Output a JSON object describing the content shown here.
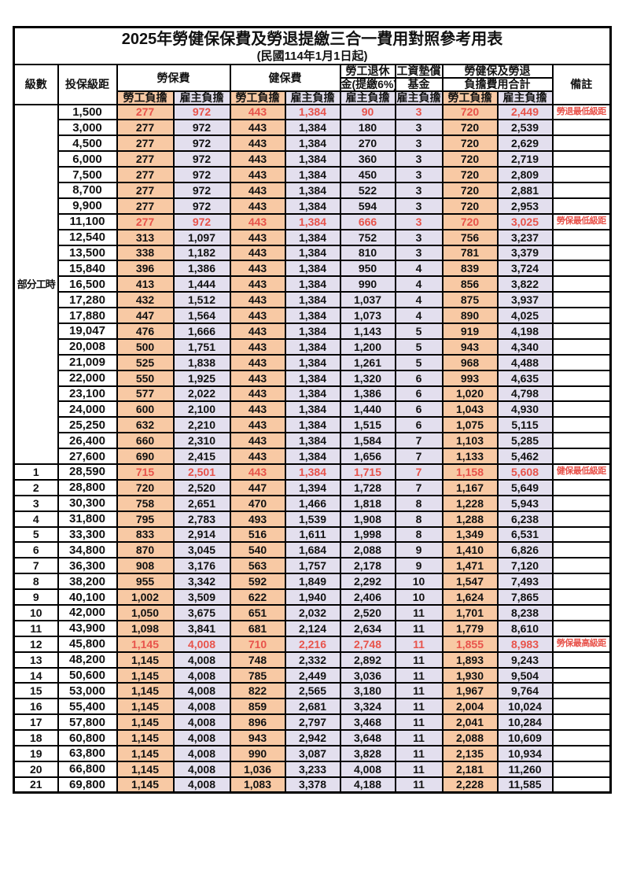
{
  "title": "2025年勞健保保費及勞退提繳三合一費用對照參考用表",
  "subtitle": "(民國114年1月1日起)",
  "header": {
    "level": "級數",
    "bracket": "投保級距",
    "labor_insurance": "勞保費",
    "health_insurance": "健保費",
    "pension_line1": "勞工退休",
    "pension_line2": "金(提繳6%)",
    "wage_fund_line1": "工資墊償",
    "wage_fund_line2": "基金",
    "total_line1": "勞健保及勞退",
    "total_line2": "負擔費用合計",
    "remark": "備註",
    "employee": "勞工負擔",
    "employer": "雇主負擔"
  },
  "part_time_label": "部分工時",
  "part_time_rowspan": 23,
  "colors": {
    "employee_burden_bg": "#F8C9A4",
    "employer_burden_bg": "#E3DFEE",
    "highlight_red": "#E8534B",
    "border": "#000000"
  },
  "rows": [
    {
      "level": "",
      "bracket": "1,500",
      "labor_emp": "277",
      "labor_er": "972",
      "health_emp": "443",
      "health_er": "1,384",
      "pension_er": "90",
      "fund_er": "3",
      "total_emp": "720",
      "total_er": "2,449",
      "remark": "勞退最低級距",
      "red": true
    },
    {
      "level": "",
      "bracket": "3,000",
      "labor_emp": "277",
      "labor_er": "972",
      "health_emp": "443",
      "health_er": "1,384",
      "pension_er": "180",
      "fund_er": "3",
      "total_emp": "720",
      "total_er": "2,539",
      "remark": "",
      "red": false
    },
    {
      "level": "",
      "bracket": "4,500",
      "labor_emp": "277",
      "labor_er": "972",
      "health_emp": "443",
      "health_er": "1,384",
      "pension_er": "270",
      "fund_er": "3",
      "total_emp": "720",
      "total_er": "2,629",
      "remark": "",
      "red": false
    },
    {
      "level": "",
      "bracket": "6,000",
      "labor_emp": "277",
      "labor_er": "972",
      "health_emp": "443",
      "health_er": "1,384",
      "pension_er": "360",
      "fund_er": "3",
      "total_emp": "720",
      "total_er": "2,719",
      "remark": "",
      "red": false
    },
    {
      "level": "",
      "bracket": "7,500",
      "labor_emp": "277",
      "labor_er": "972",
      "health_emp": "443",
      "health_er": "1,384",
      "pension_er": "450",
      "fund_er": "3",
      "total_emp": "720",
      "total_er": "2,809",
      "remark": "",
      "red": false
    },
    {
      "level": "",
      "bracket": "8,700",
      "labor_emp": "277",
      "labor_er": "972",
      "health_emp": "443",
      "health_er": "1,384",
      "pension_er": "522",
      "fund_er": "3",
      "total_emp": "720",
      "total_er": "2,881",
      "remark": "",
      "red": false
    },
    {
      "level": "",
      "bracket": "9,900",
      "labor_emp": "277",
      "labor_er": "972",
      "health_emp": "443",
      "health_er": "1,384",
      "pension_er": "594",
      "fund_er": "3",
      "total_emp": "720",
      "total_er": "2,953",
      "remark": "",
      "red": false
    },
    {
      "level": "",
      "bracket": "11,100",
      "labor_emp": "277",
      "labor_er": "972",
      "health_emp": "443",
      "health_er": "1,384",
      "pension_er": "666",
      "fund_er": "3",
      "total_emp": "720",
      "total_er": "3,025",
      "remark": "勞保最低級距",
      "red": true
    },
    {
      "level": "",
      "bracket": "12,540",
      "labor_emp": "313",
      "labor_er": "1,097",
      "health_emp": "443",
      "health_er": "1,384",
      "pension_er": "752",
      "fund_er": "3",
      "total_emp": "756",
      "total_er": "3,237",
      "remark": "",
      "red": false
    },
    {
      "level": "",
      "bracket": "13,500",
      "labor_emp": "338",
      "labor_er": "1,182",
      "health_emp": "443",
      "health_er": "1,384",
      "pension_er": "810",
      "fund_er": "3",
      "total_emp": "781",
      "total_er": "3,379",
      "remark": "",
      "red": false
    },
    {
      "level": "",
      "bracket": "15,840",
      "labor_emp": "396",
      "labor_er": "1,386",
      "health_emp": "443",
      "health_er": "1,384",
      "pension_er": "950",
      "fund_er": "4",
      "total_emp": "839",
      "total_er": "3,724",
      "remark": "",
      "red": false
    },
    {
      "level": "",
      "bracket": "16,500",
      "labor_emp": "413",
      "labor_er": "1,444",
      "health_emp": "443",
      "health_er": "1,384",
      "pension_er": "990",
      "fund_er": "4",
      "total_emp": "856",
      "total_er": "3,822",
      "remark": "",
      "red": false
    },
    {
      "level": "",
      "bracket": "17,280",
      "labor_emp": "432",
      "labor_er": "1,512",
      "health_emp": "443",
      "health_er": "1,384",
      "pension_er": "1,037",
      "fund_er": "4",
      "total_emp": "875",
      "total_er": "3,937",
      "remark": "",
      "red": false
    },
    {
      "level": "",
      "bracket": "17,880",
      "labor_emp": "447",
      "labor_er": "1,564",
      "health_emp": "443",
      "health_er": "1,384",
      "pension_er": "1,073",
      "fund_er": "4",
      "total_emp": "890",
      "total_er": "4,025",
      "remark": "",
      "red": false
    },
    {
      "level": "",
      "bracket": "19,047",
      "labor_emp": "476",
      "labor_er": "1,666",
      "health_emp": "443",
      "health_er": "1,384",
      "pension_er": "1,143",
      "fund_er": "5",
      "total_emp": "919",
      "total_er": "4,198",
      "remark": "",
      "red": false
    },
    {
      "level": "",
      "bracket": "20,008",
      "labor_emp": "500",
      "labor_er": "1,751",
      "health_emp": "443",
      "health_er": "1,384",
      "pension_er": "1,200",
      "fund_er": "5",
      "total_emp": "943",
      "total_er": "4,340",
      "remark": "",
      "red": false
    },
    {
      "level": "",
      "bracket": "21,009",
      "labor_emp": "525",
      "labor_er": "1,838",
      "health_emp": "443",
      "health_er": "1,384",
      "pension_er": "1,261",
      "fund_er": "5",
      "total_emp": "968",
      "total_er": "4,488",
      "remark": "",
      "red": false
    },
    {
      "level": "",
      "bracket": "22,000",
      "labor_emp": "550",
      "labor_er": "1,925",
      "health_emp": "443",
      "health_er": "1,384",
      "pension_er": "1,320",
      "fund_er": "6",
      "total_emp": "993",
      "total_er": "4,635",
      "remark": "",
      "red": false
    },
    {
      "level": "",
      "bracket": "23,100",
      "labor_emp": "577",
      "labor_er": "2,022",
      "health_emp": "443",
      "health_er": "1,384",
      "pension_er": "1,386",
      "fund_er": "6",
      "total_emp": "1,020",
      "total_er": "4,798",
      "remark": "",
      "red": false
    },
    {
      "level": "",
      "bracket": "24,000",
      "labor_emp": "600",
      "labor_er": "2,100",
      "health_emp": "443",
      "health_er": "1,384",
      "pension_er": "1,440",
      "fund_er": "6",
      "total_emp": "1,043",
      "total_er": "4,930",
      "remark": "",
      "red": false
    },
    {
      "level": "",
      "bracket": "25,250",
      "labor_emp": "632",
      "labor_er": "2,210",
      "health_emp": "443",
      "health_er": "1,384",
      "pension_er": "1,515",
      "fund_er": "6",
      "total_emp": "1,075",
      "total_er": "5,115",
      "remark": "",
      "red": false
    },
    {
      "level": "",
      "bracket": "26,400",
      "labor_emp": "660",
      "labor_er": "2,310",
      "health_emp": "443",
      "health_er": "1,384",
      "pension_er": "1,584",
      "fund_er": "7",
      "total_emp": "1,103",
      "total_er": "5,285",
      "remark": "",
      "red": false
    },
    {
      "level": "",
      "bracket": "27,600",
      "labor_emp": "690",
      "labor_er": "2,415",
      "health_emp": "443",
      "health_er": "1,384",
      "pension_er": "1,656",
      "fund_er": "7",
      "total_emp": "1,133",
      "total_er": "5,462",
      "remark": "",
      "red": false
    },
    {
      "level": "1",
      "bracket": "28,590",
      "labor_emp": "715",
      "labor_er": "2,501",
      "health_emp": "443",
      "health_er": "1,384",
      "pension_er": "1,715",
      "fund_er": "7",
      "total_emp": "1,158",
      "total_er": "5,608",
      "remark": "健保最低級距",
      "red": true
    },
    {
      "level": "2",
      "bracket": "28,800",
      "labor_emp": "720",
      "labor_er": "2,520",
      "health_emp": "447",
      "health_er": "1,394",
      "pension_er": "1,728",
      "fund_er": "7",
      "total_emp": "1,167",
      "total_er": "5,649",
      "remark": "",
      "red": false
    },
    {
      "level": "3",
      "bracket": "30,300",
      "labor_emp": "758",
      "labor_er": "2,651",
      "health_emp": "470",
      "health_er": "1,466",
      "pension_er": "1,818",
      "fund_er": "8",
      "total_emp": "1,228",
      "total_er": "5,943",
      "remark": "",
      "red": false
    },
    {
      "level": "4",
      "bracket": "31,800",
      "labor_emp": "795",
      "labor_er": "2,783",
      "health_emp": "493",
      "health_er": "1,539",
      "pension_er": "1,908",
      "fund_er": "8",
      "total_emp": "1,288",
      "total_er": "6,238",
      "remark": "",
      "red": false
    },
    {
      "level": "5",
      "bracket": "33,300",
      "labor_emp": "833",
      "labor_er": "2,914",
      "health_emp": "516",
      "health_er": "1,611",
      "pension_er": "1,998",
      "fund_er": "8",
      "total_emp": "1,349",
      "total_er": "6,531",
      "remark": "",
      "red": false
    },
    {
      "level": "6",
      "bracket": "34,800",
      "labor_emp": "870",
      "labor_er": "3,045",
      "health_emp": "540",
      "health_er": "1,684",
      "pension_er": "2,088",
      "fund_er": "9",
      "total_emp": "1,410",
      "total_er": "6,826",
      "remark": "",
      "red": false
    },
    {
      "level": "7",
      "bracket": "36,300",
      "labor_emp": "908",
      "labor_er": "3,176",
      "health_emp": "563",
      "health_er": "1,757",
      "pension_er": "2,178",
      "fund_er": "9",
      "total_emp": "1,471",
      "total_er": "7,120",
      "remark": "",
      "red": false
    },
    {
      "level": "8",
      "bracket": "38,200",
      "labor_emp": "955",
      "labor_er": "3,342",
      "health_emp": "592",
      "health_er": "1,849",
      "pension_er": "2,292",
      "fund_er": "10",
      "total_emp": "1,547",
      "total_er": "7,493",
      "remark": "",
      "red": false
    },
    {
      "level": "9",
      "bracket": "40,100",
      "labor_emp": "1,002",
      "labor_er": "3,509",
      "health_emp": "622",
      "health_er": "1,940",
      "pension_er": "2,406",
      "fund_er": "10",
      "total_emp": "1,624",
      "total_er": "7,865",
      "remark": "",
      "red": false
    },
    {
      "level": "10",
      "bracket": "42,000",
      "labor_emp": "1,050",
      "labor_er": "3,675",
      "health_emp": "651",
      "health_er": "2,032",
      "pension_er": "2,520",
      "fund_er": "11",
      "total_emp": "1,701",
      "total_er": "8,238",
      "remark": "",
      "red": false
    },
    {
      "level": "11",
      "bracket": "43,900",
      "labor_emp": "1,098",
      "labor_er": "3,841",
      "health_emp": "681",
      "health_er": "2,124",
      "pension_er": "2,634",
      "fund_er": "11",
      "total_emp": "1,779",
      "total_er": "8,610",
      "remark": "",
      "red": false
    },
    {
      "level": "12",
      "bracket": "45,800",
      "labor_emp": "1,145",
      "labor_er": "4,008",
      "health_emp": "710",
      "health_er": "2,216",
      "pension_er": "2,748",
      "fund_er": "11",
      "total_emp": "1,855",
      "total_er": "8,983",
      "remark": "勞保最高級距",
      "red": true
    },
    {
      "level": "13",
      "bracket": "48,200",
      "labor_emp": "1,145",
      "labor_er": "4,008",
      "health_emp": "748",
      "health_er": "2,332",
      "pension_er": "2,892",
      "fund_er": "11",
      "total_emp": "1,893",
      "total_er": "9,243",
      "remark": "",
      "red": false
    },
    {
      "level": "14",
      "bracket": "50,600",
      "labor_emp": "1,145",
      "labor_er": "4,008",
      "health_emp": "785",
      "health_er": "2,449",
      "pension_er": "3,036",
      "fund_er": "11",
      "total_emp": "1,930",
      "total_er": "9,504",
      "remark": "",
      "red": false
    },
    {
      "level": "15",
      "bracket": "53,000",
      "labor_emp": "1,145",
      "labor_er": "4,008",
      "health_emp": "822",
      "health_er": "2,565",
      "pension_er": "3,180",
      "fund_er": "11",
      "total_emp": "1,967",
      "total_er": "9,764",
      "remark": "",
      "red": false
    },
    {
      "level": "16",
      "bracket": "55,400",
      "labor_emp": "1,145",
      "labor_er": "4,008",
      "health_emp": "859",
      "health_er": "2,681",
      "pension_er": "3,324",
      "fund_er": "11",
      "total_emp": "2,004",
      "total_er": "10,024",
      "remark": "",
      "red": false
    },
    {
      "level": "17",
      "bracket": "57,800",
      "labor_emp": "1,145",
      "labor_er": "4,008",
      "health_emp": "896",
      "health_er": "2,797",
      "pension_er": "3,468",
      "fund_er": "11",
      "total_emp": "2,041",
      "total_er": "10,284",
      "remark": "",
      "red": false
    },
    {
      "level": "18",
      "bracket": "60,800",
      "labor_emp": "1,145",
      "labor_er": "4,008",
      "health_emp": "943",
      "health_er": "2,942",
      "pension_er": "3,648",
      "fund_er": "11",
      "total_emp": "2,088",
      "total_er": "10,609",
      "remark": "",
      "red": false
    },
    {
      "level": "19",
      "bracket": "63,800",
      "labor_emp": "1,145",
      "labor_er": "4,008",
      "health_emp": "990",
      "health_er": "3,087",
      "pension_er": "3,828",
      "fund_er": "11",
      "total_emp": "2,135",
      "total_er": "10,934",
      "remark": "",
      "red": false
    },
    {
      "level": "20",
      "bracket": "66,800",
      "labor_emp": "1,145",
      "labor_er": "4,008",
      "health_emp": "1,036",
      "health_er": "3,233",
      "pension_er": "4,008",
      "fund_er": "11",
      "total_emp": "2,181",
      "total_er": "11,260",
      "remark": "",
      "red": false
    },
    {
      "level": "21",
      "bracket": "69,800",
      "labor_emp": "1,145",
      "labor_er": "4,008",
      "health_emp": "1,083",
      "health_er": "3,378",
      "pension_er": "4,188",
      "fund_er": "11",
      "total_emp": "2,228",
      "total_er": "11,585",
      "remark": "",
      "red": false
    }
  ]
}
